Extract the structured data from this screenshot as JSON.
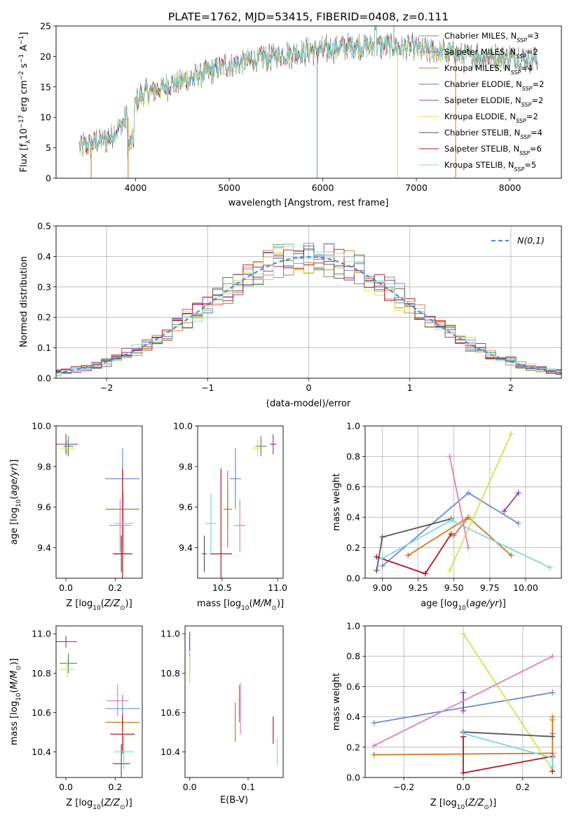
{
  "page": {
    "title": "PLATE=1762, MJD=53415, FIBERID=0408, z=0.111"
  },
  "models": [
    {
      "name": "Chabrier MILES",
      "lib": "MILES",
      "n": "3",
      "color": "#6a8ad6"
    },
    {
      "name": "Salpeter MILES",
      "lib": "MILES",
      "n": "2",
      "color": "#e8663b"
    },
    {
      "name": "Kroupa MILES",
      "lib": "MILES",
      "n": "4",
      "color": "#cc7a1c"
    },
    {
      "name": "Chabrier ELODIE",
      "lib": "ELODIE",
      "n": "2",
      "color": "#4f8f4f"
    },
    {
      "name": "Salpeter ELODIE",
      "lib": "ELODIE",
      "n": "2",
      "color": "#8e3bb0"
    },
    {
      "name": "Kroupa ELODIE",
      "lib": "ELODIE",
      "n": "2",
      "color": "#d3e34a"
    },
    {
      "name": "Chabrier STELIB",
      "lib": "STELIB",
      "n": "4",
      "color": "#555555"
    },
    {
      "name": "Salpeter STELIB",
      "lib": "STELIB",
      "n": "6",
      "color": "#b3161e"
    },
    {
      "name": "Kroupa STELIB",
      "lib": "STELIB",
      "n": "5",
      "color": "#7fd6de"
    }
  ],
  "extra_colors": {
    "pink": "#e07fba",
    "dashed": "#5c87d0"
  },
  "chart_data": [
    {
      "id": "spectrum",
      "type": "line",
      "title": "PLATE=1762, MJD=53415, FIBERID=0408, z=0.111",
      "xlabel": "wavelength [Angstrom, rest frame]",
      "ylabel": "Flux [f_λ 10^-17 erg cm^-2 s^-1 A^-1]",
      "xlim": [
        3150,
        8550
      ],
      "ylim": [
        0,
        25
      ],
      "xticks": [
        4000,
        5000,
        6000,
        7000,
        8000
      ],
      "yticks": [
        0,
        5,
        10,
        15,
        20,
        25
      ],
      "grid": false,
      "legend": "right",
      "x_range": [
        3400,
        8300
      ],
      "continuum_knots": [
        [
          3400,
          5.0
        ],
        [
          3700,
          6.5
        ],
        [
          3900,
          9.5
        ],
        [
          4050,
          13.5
        ],
        [
          4300,
          15.0
        ],
        [
          4600,
          16.5
        ],
        [
          4900,
          18.2
        ],
        [
          5200,
          19.2
        ],
        [
          5500,
          20.2
        ],
        [
          5900,
          21.0
        ],
        [
          6200,
          21.5
        ],
        [
          6600,
          21.8
        ],
        [
          7000,
          21.3
        ],
        [
          7500,
          20.2
        ],
        [
          8000,
          19.8
        ],
        [
          8300,
          19.5
        ]
      ]
    },
    {
      "id": "residuals",
      "type": "step",
      "xlabel": "(data-model)/error",
      "ylabel": "Normed distribution",
      "xlim": [
        -2.5,
        2.5
      ],
      "ylim": [
        0,
        0.5
      ],
      "xticks": [
        -2,
        -1,
        0,
        1,
        2
      ],
      "yticks": [
        0.0,
        0.1,
        0.2,
        0.3,
        0.4,
        0.5
      ],
      "grid": true,
      "legend": "top-right",
      "reference_label": "N(0,1)",
      "bin_width": 0.1
    },
    {
      "id": "age_vs_Z",
      "type": "errorbar",
      "xlabel": "Z [log10(Z/Z⊙)]",
      "ylabel": "age [log10(age/yr)]",
      "xlim": [
        -0.04,
        0.31
      ],
      "ylim": [
        9.25,
        10.0
      ],
      "xticks": [
        0.0,
        0.2
      ],
      "yticks": [
        9.4,
        9.6,
        9.8,
        10.0
      ],
      "points": [
        {
          "model": "Chabrier MILES",
          "x": 0.23,
          "xerr": 0.07,
          "y": 9.74,
          "yerr": 0.15
        },
        {
          "model": "Salpeter MILES",
          "x": 0.23,
          "xerr": 0.065,
          "y": 9.59,
          "yerr": 0.19
        },
        {
          "model": "Kroupa MILES",
          "x": 0.23,
          "xerr": 0.07,
          "y": 9.59,
          "yerr": 0.1
        },
        {
          "model": "Chabrier ELODIE",
          "x": 0.01,
          "xerr": 0.02,
          "y": 9.9,
          "yerr": 0.05
        },
        {
          "model": "Salpeter ELODIE",
          "x": 0.0,
          "xerr": 0.05,
          "y": 9.91,
          "yerr": 0.05
        },
        {
          "model": "Kroupa ELODIE",
          "x": 0.005,
          "xerr": 0.03,
          "y": 9.89,
          "yerr": 0.04
        },
        {
          "model": "Chabrier STELIB",
          "x": 0.225,
          "xerr": 0.025,
          "y": 9.37,
          "yerr": 0.09
        },
        {
          "model": "Salpeter STELIB",
          "x": 0.23,
          "xerr": 0.04,
          "y": 9.37,
          "yerr": 0.42
        },
        {
          "model": "Kroupa STELIB",
          "x": 0.235,
          "xerr": 0.04,
          "y": 9.52,
          "yerr": 0.15
        },
        {
          "model": "pink",
          "x": 0.22,
          "xerr": 0.045,
          "y": 9.51,
          "yerr": 0.13
        }
      ]
    },
    {
      "id": "age_vs_mass",
      "type": "errorbar",
      "xlabel": "mass [log10(M/M⊙)]",
      "xlim": [
        10.28,
        11.05
      ],
      "ylim": [
        9.25,
        10.0
      ],
      "xticks": [
        10.5,
        11.0
      ],
      "yticks": [
        9.4,
        9.6,
        9.8,
        10.0
      ],
      "points": [
        {
          "model": "Chabrier MILES",
          "x": 10.62,
          "xerr": 0.05,
          "y": 9.74,
          "yerr": 0.15
        },
        {
          "model": "Salpeter MILES",
          "x": 10.55,
          "xerr": 0.02,
          "y": 9.59,
          "yerr": 0.19
        },
        {
          "model": "Kroupa MILES",
          "x": 10.55,
          "xerr": 0.04,
          "y": 9.59,
          "yerr": 0.1
        },
        {
          "model": "Chabrier ELODIE",
          "x": 10.85,
          "xerr": 0.05,
          "y": 9.9,
          "yerr": 0.05
        },
        {
          "model": "Salpeter ELODIE",
          "x": 10.96,
          "xerr": 0.03,
          "y": 9.91,
          "yerr": 0.05
        },
        {
          "model": "Kroupa ELODIE",
          "x": 10.82,
          "xerr": 0.04,
          "y": 9.89,
          "yerr": 0.04
        },
        {
          "model": "Chabrier STELIB",
          "x": 10.34,
          "xerr": 0.02,
          "y": 9.37,
          "yerr": 0.09
        },
        {
          "model": "Salpeter STELIB",
          "x": 10.49,
          "xerr": 0.1,
          "y": 9.37,
          "yerr": 0.42
        },
        {
          "model": "Kroupa STELIB",
          "x": 10.4,
          "xerr": 0.05,
          "y": 9.52,
          "yerr": 0.15
        },
        {
          "model": "pink",
          "x": 10.66,
          "xerr": 0.05,
          "y": 9.51,
          "yerr": 0.13
        }
      ]
    },
    {
      "id": "weight_vs_age",
      "type": "line",
      "xlabel": "age [log10(age/yr)]",
      "ylabel": "mass weight",
      "xlim": [
        8.88,
        10.25
      ],
      "ylim": [
        0,
        1.0
      ],
      "xticks": [
        9.0,
        9.25,
        9.5,
        9.75,
        10.0
      ],
      "yticks": [
        0.0,
        0.2,
        0.4,
        0.6,
        0.8,
        1.0
      ],
      "grid": true,
      "series": [
        {
          "model": "Chabrier MILES",
          "x": [
            9.0,
            9.6,
            9.95
          ],
          "y": [
            0.08,
            0.56,
            0.36
          ]
        },
        {
          "model": "Salpeter MILES",
          "x": [
            9.5,
            9.6
          ],
          "y": [
            0.28,
            0.4
          ]
        },
        {
          "model": "Kroupa MILES",
          "x": [
            9.18,
            9.6,
            9.9
          ],
          "y": [
            0.15,
            0.4,
            0.15
          ]
        },
        {
          "model": "Salpeter ELODIE",
          "x": [
            9.85,
            9.95
          ],
          "y": [
            0.44,
            0.56
          ]
        },
        {
          "model": "Kroupa ELODIE",
          "x": [
            9.47,
            9.9
          ],
          "y": [
            0.05,
            0.95
          ]
        },
        {
          "model": "Chabrier STELIB",
          "x": [
            8.96,
            9.0,
            9.48
          ],
          "y": [
            0.05,
            0.27,
            0.39
          ]
        },
        {
          "model": "Salpeter STELIB",
          "x": [
            8.96,
            9.3,
            9.48
          ],
          "y": [
            0.14,
            0.03,
            0.29
          ]
        },
        {
          "model": "Kroupa STELIB",
          "x": [
            9.0,
            9.48,
            10.17
          ],
          "y": [
            0.13,
            0.38,
            0.07
          ]
        },
        {
          "model": "pink",
          "x": [
            9.47,
            9.6
          ],
          "y": [
            0.8,
            0.2
          ]
        }
      ]
    },
    {
      "id": "mass_vs_Z",
      "type": "errorbar",
      "xlabel": "Z [log10(Z/Z⊙)]",
      "ylabel": "mass [log10(M/M⊙)]",
      "xlim": [
        -0.04,
        0.31
      ],
      "ylim": [
        10.27,
        11.04
      ],
      "xticks": [
        0.0,
        0.2
      ],
      "yticks": [
        10.4,
        10.6,
        10.8,
        11.0
      ],
      "points": [
        {
          "model": "Chabrier MILES",
          "x": 0.23,
          "xerr": 0.07,
          "y": 10.62,
          "yerr": 0.07
        },
        {
          "model": "Salpeter MILES",
          "x": 0.23,
          "xerr": 0.065,
          "y": 10.55,
          "yerr": 0.02
        },
        {
          "model": "Kroupa MILES",
          "x": 0.23,
          "xerr": 0.07,
          "y": 10.55,
          "yerr": 0.04
        },
        {
          "model": "Chabrier ELODIE",
          "x": 0.01,
          "xerr": 0.035,
          "y": 10.85,
          "yerr": 0.05
        },
        {
          "model": "Salpeter ELODIE",
          "x": 0.0,
          "xerr": 0.045,
          "y": 10.96,
          "yerr": 0.03
        },
        {
          "model": "Kroupa ELODIE",
          "x": 0.005,
          "xerr": 0.03,
          "y": 10.82,
          "yerr": 0.04
        },
        {
          "model": "Chabrier STELIB",
          "x": 0.225,
          "xerr": 0.035,
          "y": 10.34,
          "yerr": 0.1
        },
        {
          "model": "Salpeter STELIB",
          "x": 0.23,
          "xerr": 0.05,
          "y": 10.49,
          "yerr": 0.1
        },
        {
          "model": "Kroupa STELIB",
          "x": 0.235,
          "xerr": 0.04,
          "y": 10.4,
          "yerr": 0.09
        },
        {
          "model": "pink",
          "x": 0.21,
          "xerr": 0.045,
          "y": 10.66,
          "yerr": 0.08
        }
      ]
    },
    {
      "id": "mass_vs_ebv",
      "type": "errorbar",
      "xlabel": "E(B-V)",
      "xlim": [
        -0.008,
        0.16
      ],
      "ylim": [
        10.27,
        11.04
      ],
      "xticks": [
        0.0,
        0.1
      ],
      "yticks": [
        10.4,
        10.6,
        10.8,
        11.0
      ],
      "points": [
        {
          "model": "Chabrier MILES",
          "x": 0.085,
          "y": 10.62,
          "yerr": 0.07
        },
        {
          "model": "Salpeter MILES",
          "x": 0.085,
          "y": 10.66,
          "yerr": 0.08
        },
        {
          "model": "Kroupa MILES",
          "x": 0.078,
          "y": 10.55,
          "yerr": 0.1
        },
        {
          "model": "Chabrier ELODIE",
          "x": 0.0,
          "y": 10.85,
          "yerr": 0.05
        },
        {
          "model": "Salpeter ELODIE",
          "x": 0.0,
          "y": 10.96,
          "yerr": 0.05
        },
        {
          "model": "Kroupa ELODIE",
          "x": 0.0,
          "y": 10.82,
          "yerr": 0.07
        },
        {
          "model": "Salpeter STELIB",
          "x": 0.143,
          "y": 10.51,
          "yerr": 0.07
        },
        {
          "model": "Kroupa STELIB",
          "x": 0.15,
          "y": 10.4,
          "yerr": 0.07
        },
        {
          "model": "pink",
          "x": 0.087,
          "y": 10.62,
          "yerr": 0.13
        }
      ]
    },
    {
      "id": "weight_vs_Z",
      "type": "line",
      "xlabel": "Z [log10(Z/Z⊙)]",
      "ylabel": "mass weight",
      "xlim": [
        -0.33,
        0.33
      ],
      "ylim": [
        0,
        1.0
      ],
      "xticks": [
        -0.2,
        0.0,
        0.2
      ],
      "yticks": [
        0.0,
        0.2,
        0.4,
        0.6,
        0.8,
        1.0
      ],
      "grid": true,
      "series": [
        {
          "model": "Chabrier MILES",
          "x": [
            -0.3,
            0.3
          ],
          "y": [
            0.36,
            0.56
          ]
        },
        {
          "model": "Salpeter MILES",
          "x": [
            0.3,
            0.3
          ],
          "y": [
            0.29,
            0.38
          ]
        },
        {
          "model": "Kroupa MILES",
          "x": [
            -0.3,
            0.3,
            0.3
          ],
          "y": [
            0.15,
            0.16,
            0.4
          ]
        },
        {
          "model": "Salpeter ELODIE",
          "x": [
            0.0,
            0.0
          ],
          "y": [
            0.44,
            0.56
          ]
        },
        {
          "model": "Kroupa ELODIE",
          "x": [
            0.0,
            0.3
          ],
          "y": [
            0.95,
            0.05
          ]
        },
        {
          "model": "Chabrier STELIB",
          "x": [
            0.0,
            0.3
          ],
          "y": [
            0.3,
            0.27
          ]
        },
        {
          "model": "Salpeter STELIB",
          "x": [
            0.0,
            0.0,
            0.3,
            0.3
          ],
          "y": [
            0.27,
            0.03,
            0.14,
            0.04
          ]
        },
        {
          "model": "Kroupa STELIB",
          "x": [
            0.0,
            0.3,
            0.3
          ],
          "y": [
            0.29,
            0.13,
            0.07
          ]
        },
        {
          "model": "pink",
          "x": [
            -0.3,
            0.3
          ],
          "y": [
            0.21,
            0.8
          ]
        }
      ]
    }
  ]
}
